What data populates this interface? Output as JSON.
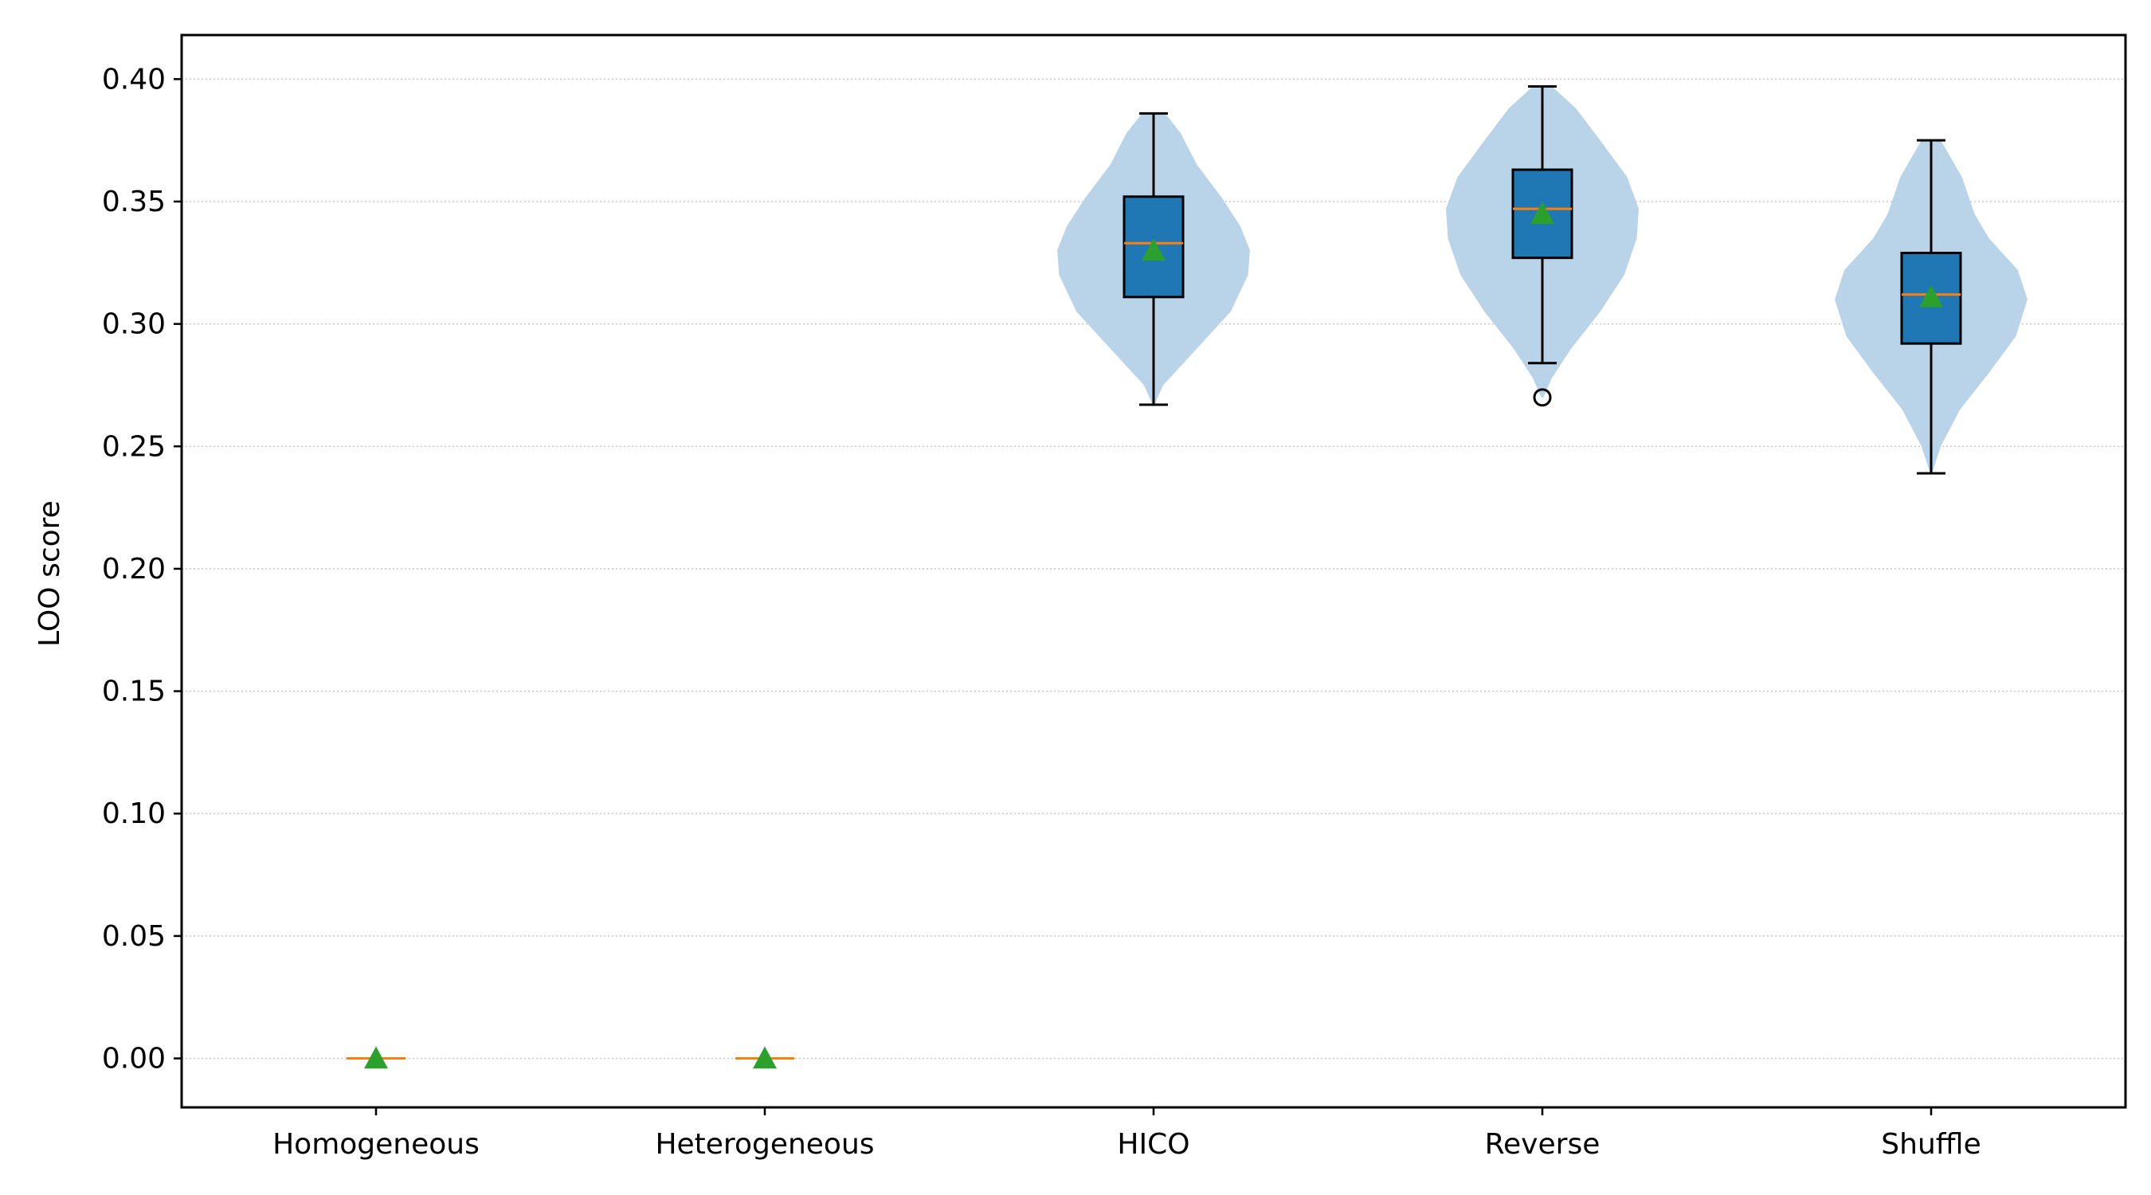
{
  "chart_data": {
    "type": "box-violin",
    "title": "",
    "xlabel": "",
    "ylabel": "LOO score",
    "ylim": [
      -0.02,
      0.418
    ],
    "yticks": [
      0.0,
      0.05,
      0.1,
      0.15,
      0.2,
      0.25,
      0.3,
      0.35,
      0.4
    ],
    "ytick_labels": [
      "0.00",
      "0.05",
      "0.10",
      "0.15",
      "0.20",
      "0.25",
      "0.30",
      "0.35",
      "0.40"
    ],
    "grid": "y, dotted",
    "categories": [
      "Homogeneous",
      "Heterogeneous",
      "HICO",
      "Reverse",
      "Shuffle"
    ],
    "groups": [
      {
        "name": "Homogeneous",
        "min": 0.0,
        "q1": 0.0,
        "median": 0.0,
        "q3": 0.0,
        "max": 0.0,
        "mean": 0.0,
        "outliers": [],
        "violin": []
      },
      {
        "name": "Heterogeneous",
        "min": 0.0,
        "q1": 0.0,
        "median": 0.0,
        "q3": 0.0,
        "max": 0.0,
        "mean": 0.0,
        "outliers": [],
        "violin": []
      },
      {
        "name": "HICO",
        "min": 0.267,
        "q1": 0.311,
        "median": 0.333,
        "q3": 0.352,
        "max": 0.386,
        "mean": 0.33,
        "outliers": [],
        "violin": [
          [
            0.267,
            0.01
          ],
          [
            0.275,
            0.1
          ],
          [
            0.29,
            0.45
          ],
          [
            0.305,
            0.8
          ],
          [
            0.32,
            0.98
          ],
          [
            0.33,
            1.0
          ],
          [
            0.34,
            0.9
          ],
          [
            0.352,
            0.7
          ],
          [
            0.365,
            0.45
          ],
          [
            0.378,
            0.28
          ],
          [
            0.386,
            0.12
          ]
        ]
      },
      {
        "name": "Reverse",
        "min": 0.284,
        "q1": 0.327,
        "median": 0.347,
        "q3": 0.363,
        "max": 0.397,
        "mean": 0.345,
        "outliers": [
          0.27
        ],
        "violin": [
          [
            0.27,
            0.01
          ],
          [
            0.278,
            0.1
          ],
          [
            0.29,
            0.3
          ],
          [
            0.305,
            0.6
          ],
          [
            0.32,
            0.85
          ],
          [
            0.335,
            0.98
          ],
          [
            0.347,
            1.0
          ],
          [
            0.36,
            0.88
          ],
          [
            0.375,
            0.6
          ],
          [
            0.388,
            0.35
          ],
          [
            0.397,
            0.1
          ]
        ]
      },
      {
        "name": "Shuffle",
        "min": 0.239,
        "q1": 0.292,
        "median": 0.312,
        "q3": 0.329,
        "max": 0.375,
        "mean": 0.311,
        "outliers": [],
        "violin": [
          [
            0.239,
            0.01
          ],
          [
            0.25,
            0.1
          ],
          [
            0.265,
            0.3
          ],
          [
            0.28,
            0.6
          ],
          [
            0.295,
            0.88
          ],
          [
            0.31,
            1.0
          ],
          [
            0.322,
            0.9
          ],
          [
            0.335,
            0.6
          ],
          [
            0.345,
            0.45
          ],
          [
            0.36,
            0.32
          ],
          [
            0.375,
            0.1
          ]
        ]
      }
    ],
    "colors": {
      "violin": "#b9d4e8",
      "box": "#1f77b4",
      "median": "#ff7f0e",
      "mean": "#2ca02c",
      "grid": "#c8c8c8"
    }
  }
}
